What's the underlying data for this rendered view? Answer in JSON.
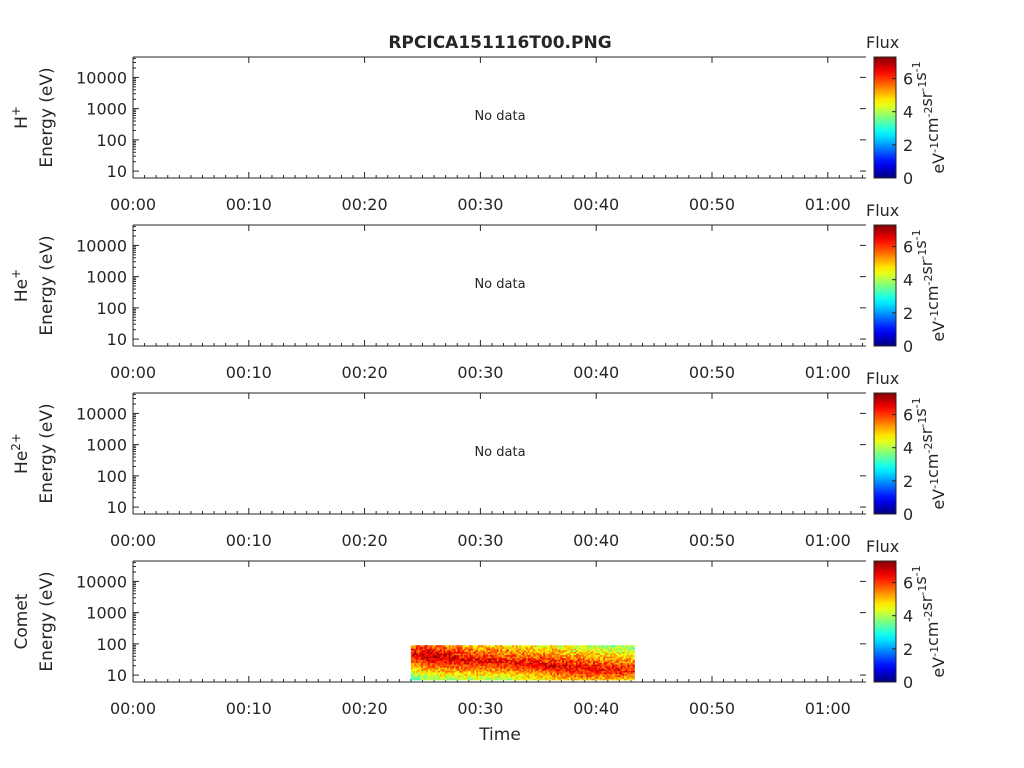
{
  "title": "RPCICA151116T00.PNG",
  "x_axis": {
    "ticks": [
      "00:00",
      "00:10",
      "00:20",
      "00:30",
      "00:40",
      "00:50",
      "01:00"
    ],
    "tick_minutes": [
      0,
      10,
      20,
      30,
      40,
      50,
      60
    ],
    "range_minutes": [
      0,
      63.3
    ],
    "label": "Time"
  },
  "y_axis": {
    "scale": "log",
    "ticks": [
      "10",
      "100",
      "1000",
      "10000"
    ],
    "tick_values": [
      10,
      100,
      1000,
      10000
    ],
    "range_eV": [
      6,
      45000
    ],
    "unit_label": "Energy (eV)"
  },
  "colorbar": {
    "title": "Flux",
    "ticks": [
      "0",
      "2",
      "4",
      "6"
    ],
    "tick_values": [
      0,
      2,
      4,
      6
    ],
    "range": [
      0,
      7.3
    ],
    "units": {
      "p1": "eV",
      "s1": "-1",
      "p2": "cm",
      "s2": "-2",
      "p3": "sr",
      "s3": "-1",
      "p4": "s",
      "s4": "-1"
    },
    "colormap": "jet"
  },
  "panels": [
    {
      "species": {
        "base": "H",
        "sup": "+"
      },
      "no_data": "No data"
    },
    {
      "species": {
        "base": "He",
        "sup": "+"
      },
      "no_data": "No data"
    },
    {
      "species": {
        "base": "He",
        "sup": "2+"
      },
      "no_data": "No data"
    },
    {
      "species": {
        "base": "Comet",
        "sup": ""
      },
      "no_data": ""
    }
  ],
  "chart_data": {
    "type": "heatmap",
    "title": "RPCICA151116T00.PNG",
    "xlabel": "Time",
    "ylabel": "Energy (eV)",
    "subplots": [
      {
        "species": "H+",
        "data": null
      },
      {
        "species": "He+",
        "data": null
      },
      {
        "species": "He2+",
        "data": null
      },
      {
        "species": "Comet",
        "time_range_minutes": [
          24,
          43.3
        ],
        "energy_range_eV": [
          7,
          90
        ],
        "ridge": [
          {
            "t": 24.0,
            "E": 45,
            "flux": 6.5
          },
          {
            "t": 25.5,
            "E": 40,
            "flux": 7.0
          },
          {
            "t": 27.0,
            "E": 35,
            "flux": 6.8
          },
          {
            "t": 29.0,
            "E": 30,
            "flux": 6.6
          },
          {
            "t": 31.0,
            "E": 28,
            "flux": 6.5
          },
          {
            "t": 33.0,
            "E": 25,
            "flux": 6.4
          },
          {
            "t": 35.0,
            "E": 22,
            "flux": 6.5
          },
          {
            "t": 37.0,
            "E": 18,
            "flux": 6.6
          },
          {
            "t": 39.0,
            "E": 16,
            "flux": 6.5
          },
          {
            "t": 41.0,
            "E": 15,
            "flux": 6.4
          },
          {
            "t": 43.0,
            "E": 14,
            "flux": 6.3
          }
        ]
      }
    ]
  }
}
